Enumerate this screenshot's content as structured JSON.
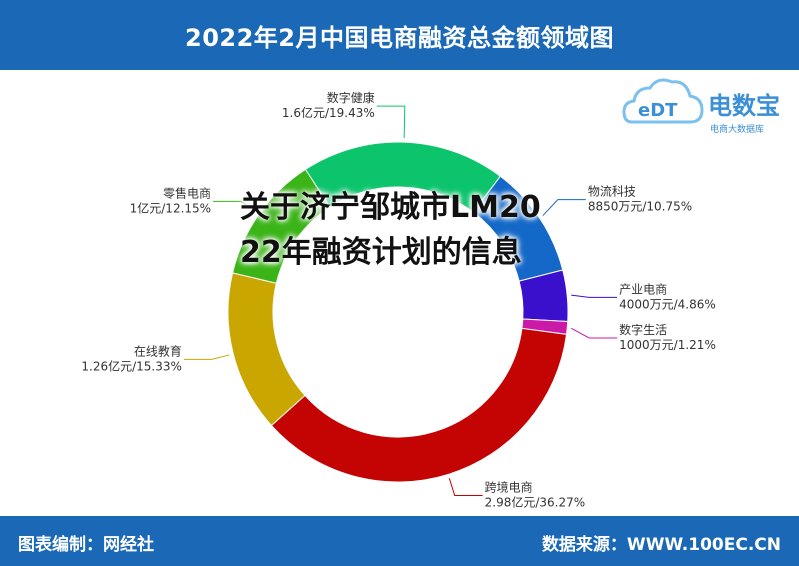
{
  "header": {
    "title": "2022年2月中国电商融资总金额领域图"
  },
  "footer": {
    "left": "图表编制：网经社",
    "right": "数据来源：WWW.100EC.CN"
  },
  "logo": {
    "brand": "电数宝",
    "sub": "电商大数据库",
    "badge": "eDT"
  },
  "overlay": {
    "text": "关于济宁邹城市LM2022年融资计划的信息"
  },
  "chart_data": {
    "type": "pie",
    "donut": true,
    "title": "2022年2月中国电商融资总金额领域图",
    "slices": [
      {
        "label": "物流科技",
        "amount": "8850万元",
        "percent": 10.75,
        "color": "#1368c8"
      },
      {
        "label": "产业电商",
        "amount": "4000万元",
        "percent": 4.86,
        "color": "#3a10cc"
      },
      {
        "label": "数字生活",
        "amount": "1000万元",
        "percent": 1.21,
        "color": "#cc1aa8"
      },
      {
        "label": "跨境电商",
        "amount": "2.98亿元",
        "percent": 36.27,
        "color": "#c40303"
      },
      {
        "label": "在线教育",
        "amount": "1.26亿元",
        "percent": 15.33,
        "color": "#c9a700"
      },
      {
        "label": "零售电商",
        "amount": "1亿元",
        "percent": 12.15,
        "color": "#3bb418"
      },
      {
        "label": "数字健康",
        "amount": "1.6亿元",
        "percent": 19.43,
        "color": "#0bc46b"
      }
    ]
  }
}
